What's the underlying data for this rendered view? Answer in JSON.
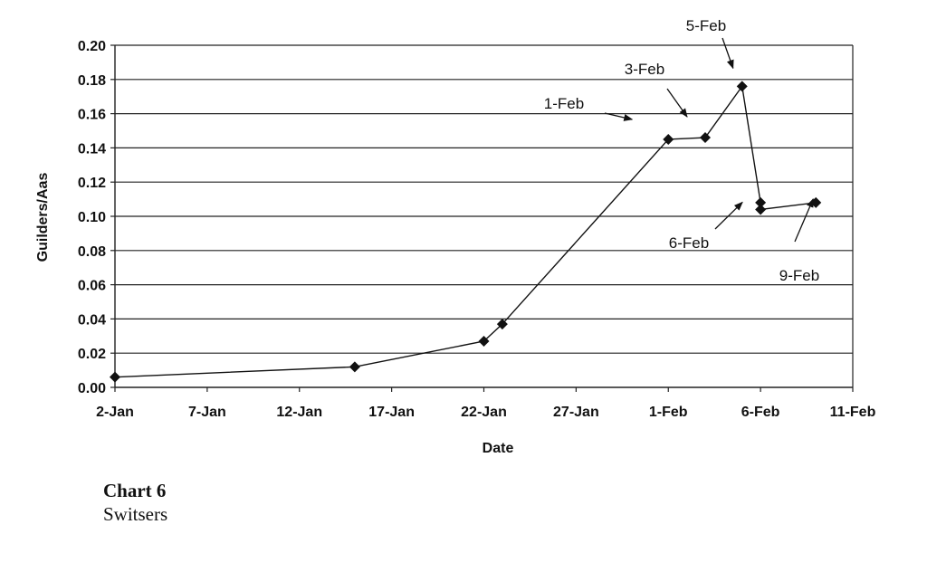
{
  "chart_data": {
    "type": "line",
    "title": "",
    "xlabel": "Date",
    "ylabel": "Guilders/Aas",
    "x_ticks": [
      "2-Jan",
      "7-Jan",
      "12-Jan",
      "17-Jan",
      "22-Jan",
      "27-Jan",
      "1-Feb",
      "6-Feb",
      "11-Feb"
    ],
    "y_ticks": [
      "0.00",
      "0.02",
      "0.04",
      "0.06",
      "0.08",
      "0.10",
      "0.12",
      "0.14",
      "0.16",
      "0.18",
      "0.20"
    ],
    "xlim": [
      "2-Jan",
      "11-Feb"
    ],
    "ylim": [
      0,
      0.2
    ],
    "grid": "horizontal",
    "marker": "diamond",
    "points": [
      {
        "x": "2-Jan",
        "y": 0.006
      },
      {
        "x": "15-Jan",
        "y": 0.012
      },
      {
        "x": "22-Jan",
        "y": 0.027
      },
      {
        "x": "23-Jan",
        "y": 0.037
      },
      {
        "x": "1-Feb",
        "y": 0.145
      },
      {
        "x": "3-Feb",
        "y": 0.146
      },
      {
        "x": "5-Feb",
        "y": 0.176
      },
      {
        "x": "6-Feb",
        "y": 0.108
      },
      {
        "x": "6-Feb",
        "y": 0.104
      },
      {
        "x": "9-Feb",
        "y": 0.108
      }
    ],
    "annotations": [
      {
        "text": "1-Feb",
        "target": {
          "x": "1-Feb",
          "y": 0.145
        }
      },
      {
        "text": "3-Feb",
        "target": {
          "x": "3-Feb",
          "y": 0.146
        }
      },
      {
        "text": "5-Feb",
        "target": {
          "x": "5-Feb",
          "y": 0.176
        }
      },
      {
        "text": "6-Feb",
        "target": {
          "x": "6-Feb",
          "y": 0.104
        }
      },
      {
        "text": "9-Feb",
        "target": {
          "x": "9-Feb",
          "y": 0.108
        }
      }
    ]
  },
  "caption": {
    "title": "Chart 6",
    "subtitle": "Switsers"
  }
}
